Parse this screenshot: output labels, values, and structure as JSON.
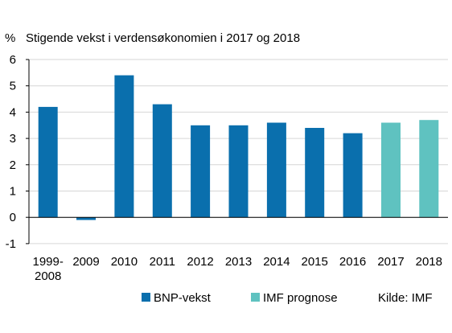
{
  "chart_data": {
    "type": "bar",
    "title": "Stigende vekst i verdensøkonomien i 2017 og 2018",
    "ylabel": "%",
    "categories": [
      [
        "1999-",
        "2008"
      ],
      [
        "2009"
      ],
      [
        "2010"
      ],
      [
        "2011"
      ],
      [
        "2012"
      ],
      [
        "2013"
      ],
      [
        "2014"
      ],
      [
        "2015"
      ],
      [
        "2016"
      ],
      [
        "2017"
      ],
      [
        "2018"
      ]
    ],
    "series": [
      {
        "name": "BNP-vekst",
        "color": "#0a6fad",
        "values": [
          4.2,
          -0.1,
          5.4,
          4.3,
          3.5,
          3.5,
          3.6,
          3.4,
          3.2,
          null,
          null
        ]
      },
      {
        "name": "IMF prognose",
        "color": "#5fc2c0",
        "values": [
          null,
          null,
          null,
          null,
          null,
          null,
          null,
          null,
          null,
          3.6,
          3.7
        ]
      }
    ],
    "ylim": [
      -1,
      6
    ],
    "yticks": [
      -1,
      0,
      1,
      2,
      3,
      4,
      5,
      6
    ],
    "grid": true,
    "legend_position": "bottom",
    "source": "Kilde: IMF"
  }
}
